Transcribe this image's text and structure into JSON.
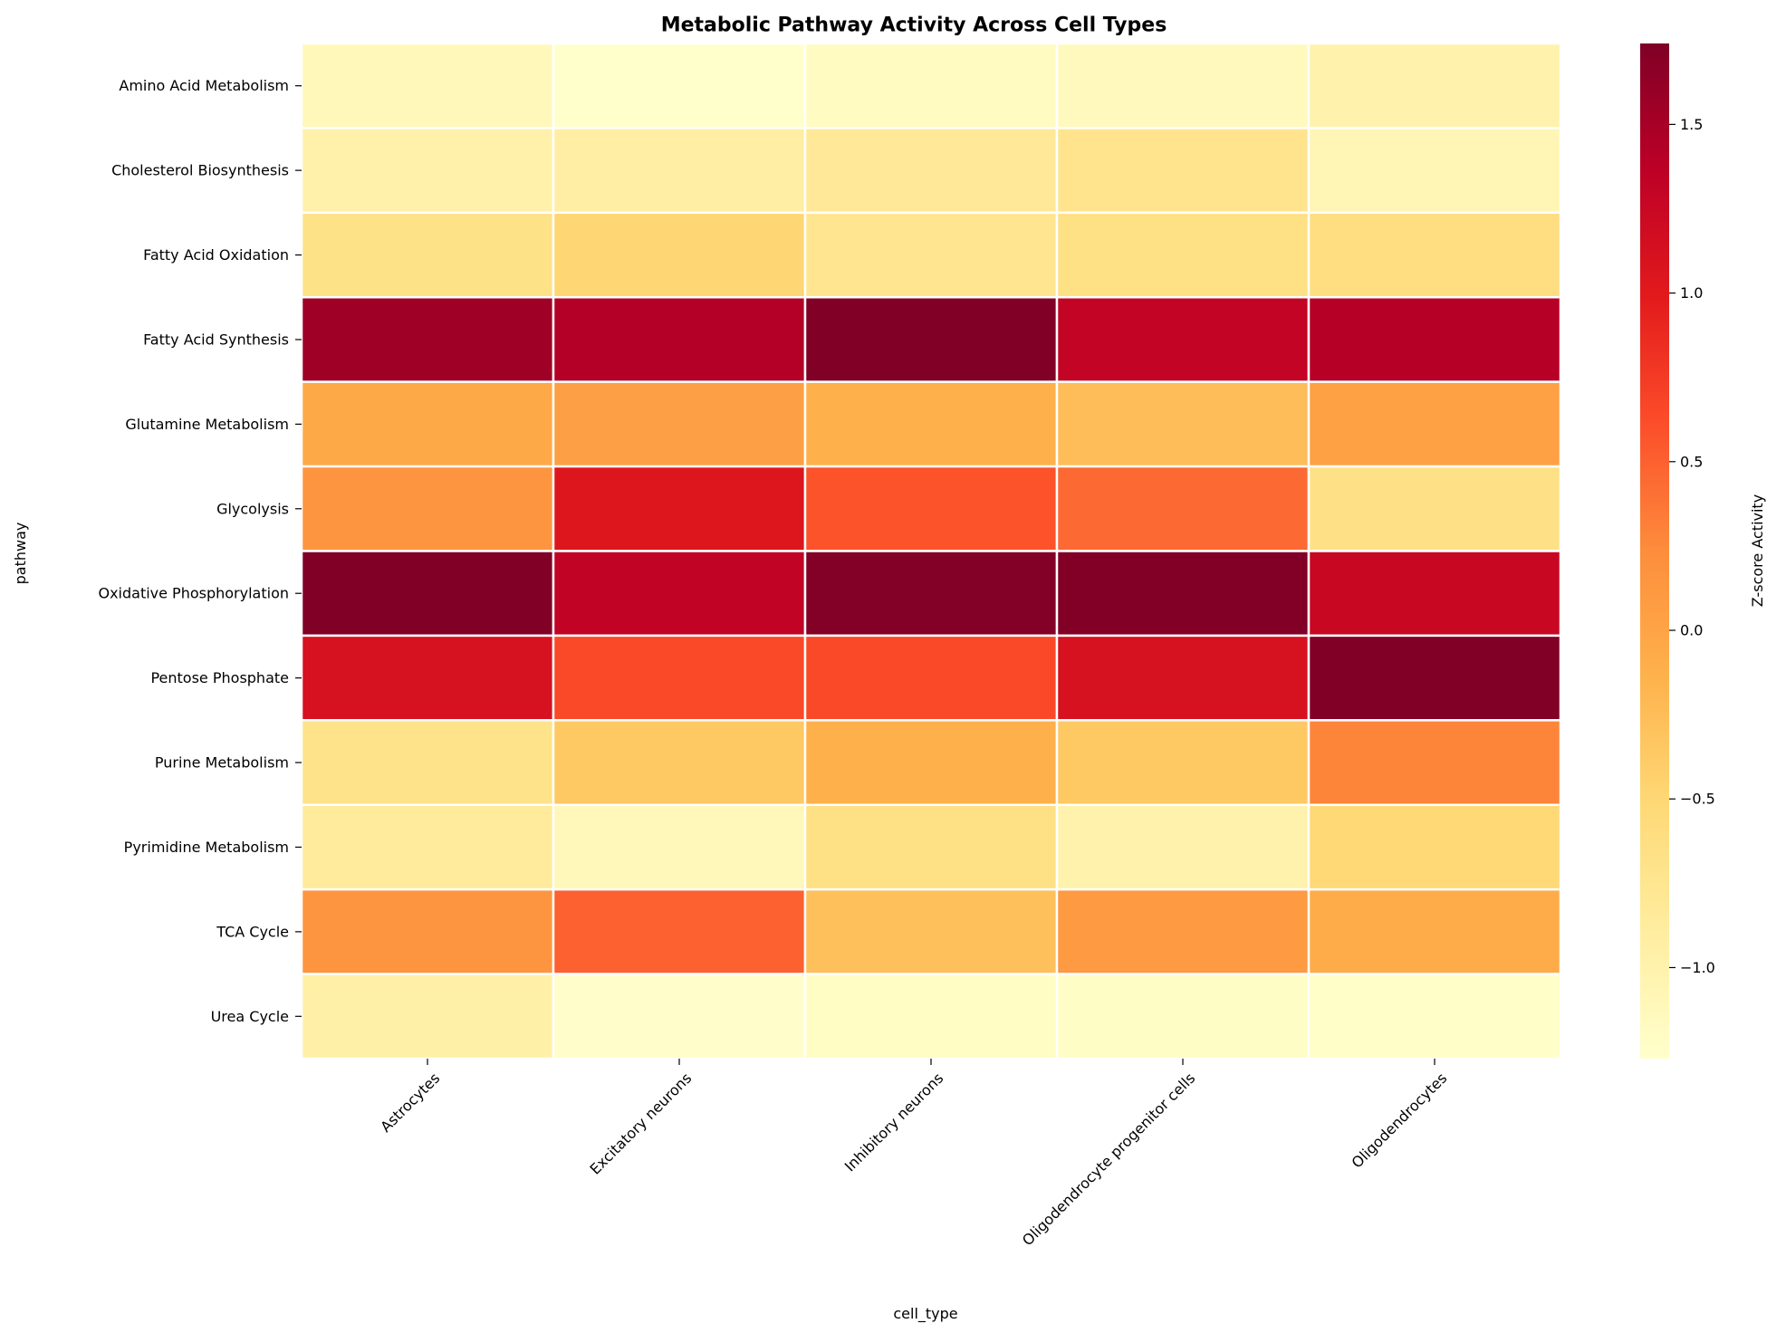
{
  "chart_data": {
    "type": "heatmap",
    "title": "Metabolic Pathway Activity Across Cell Types",
    "xlabel": "cell_type",
    "ylabel": "pathway",
    "colorbar_label": "Z-score Activity",
    "colormap": "YlOrRd",
    "color_range": [
      -1.27,
      1.74
    ],
    "colorbar_ticks": [
      "1.5",
      "1.0",
      "0.5",
      "0.0",
      "−0.5",
      "−1.0"
    ],
    "colorbar_tick_values": [
      1.5,
      1.0,
      0.5,
      0.0,
      -0.5,
      -1.0
    ],
    "x_categories": [
      "Astrocytes",
      "Excitatory neurons",
      "Inhibitory neurons",
      "Oligodendrocyte progenitor cells",
      "Oligodendrocytes"
    ],
    "y_categories": [
      "Amino Acid Metabolism",
      "Cholesterol Biosynthesis",
      "Fatty Acid Oxidation",
      "Fatty Acid Synthesis",
      "Glutamine Metabolism",
      "Glycolysis",
      "Oxidative Phosphorylation",
      "Pentose Phosphate",
      "Purine Metabolism",
      "Pyrimidine Metabolism",
      "TCA Cycle",
      "Urea Cycle"
    ],
    "values": [
      [
        -1.12,
        -1.26,
        -1.18,
        -1.15,
        -1.0
      ],
      [
        -0.98,
        -0.92,
        -0.82,
        -0.72,
        -1.07
      ],
      [
        -0.68,
        -0.5,
        -0.75,
        -0.65,
        -0.62
      ],
      [
        1.55,
        1.42,
        1.74,
        1.3,
        1.4
      ],
      [
        -0.05,
        0.05,
        -0.12,
        -0.25,
        0.03
      ],
      [
        0.15,
        1.05,
        0.58,
        0.45,
        -0.66
      ],
      [
        1.74,
        1.32,
        1.72,
        1.73,
        1.25
      ],
      [
        1.12,
        0.65,
        0.65,
        1.12,
        1.74
      ],
      [
        -0.7,
        -0.35,
        -0.12,
        -0.35,
        0.28
      ],
      [
        -0.85,
        -1.12,
        -0.65,
        -1.0,
        -0.52
      ],
      [
        0.15,
        0.5,
        -0.28,
        0.1,
        -0.08
      ],
      [
        -0.95,
        -1.25,
        -1.2,
        -1.22,
        -1.24
      ]
    ],
    "grid": false
  }
}
